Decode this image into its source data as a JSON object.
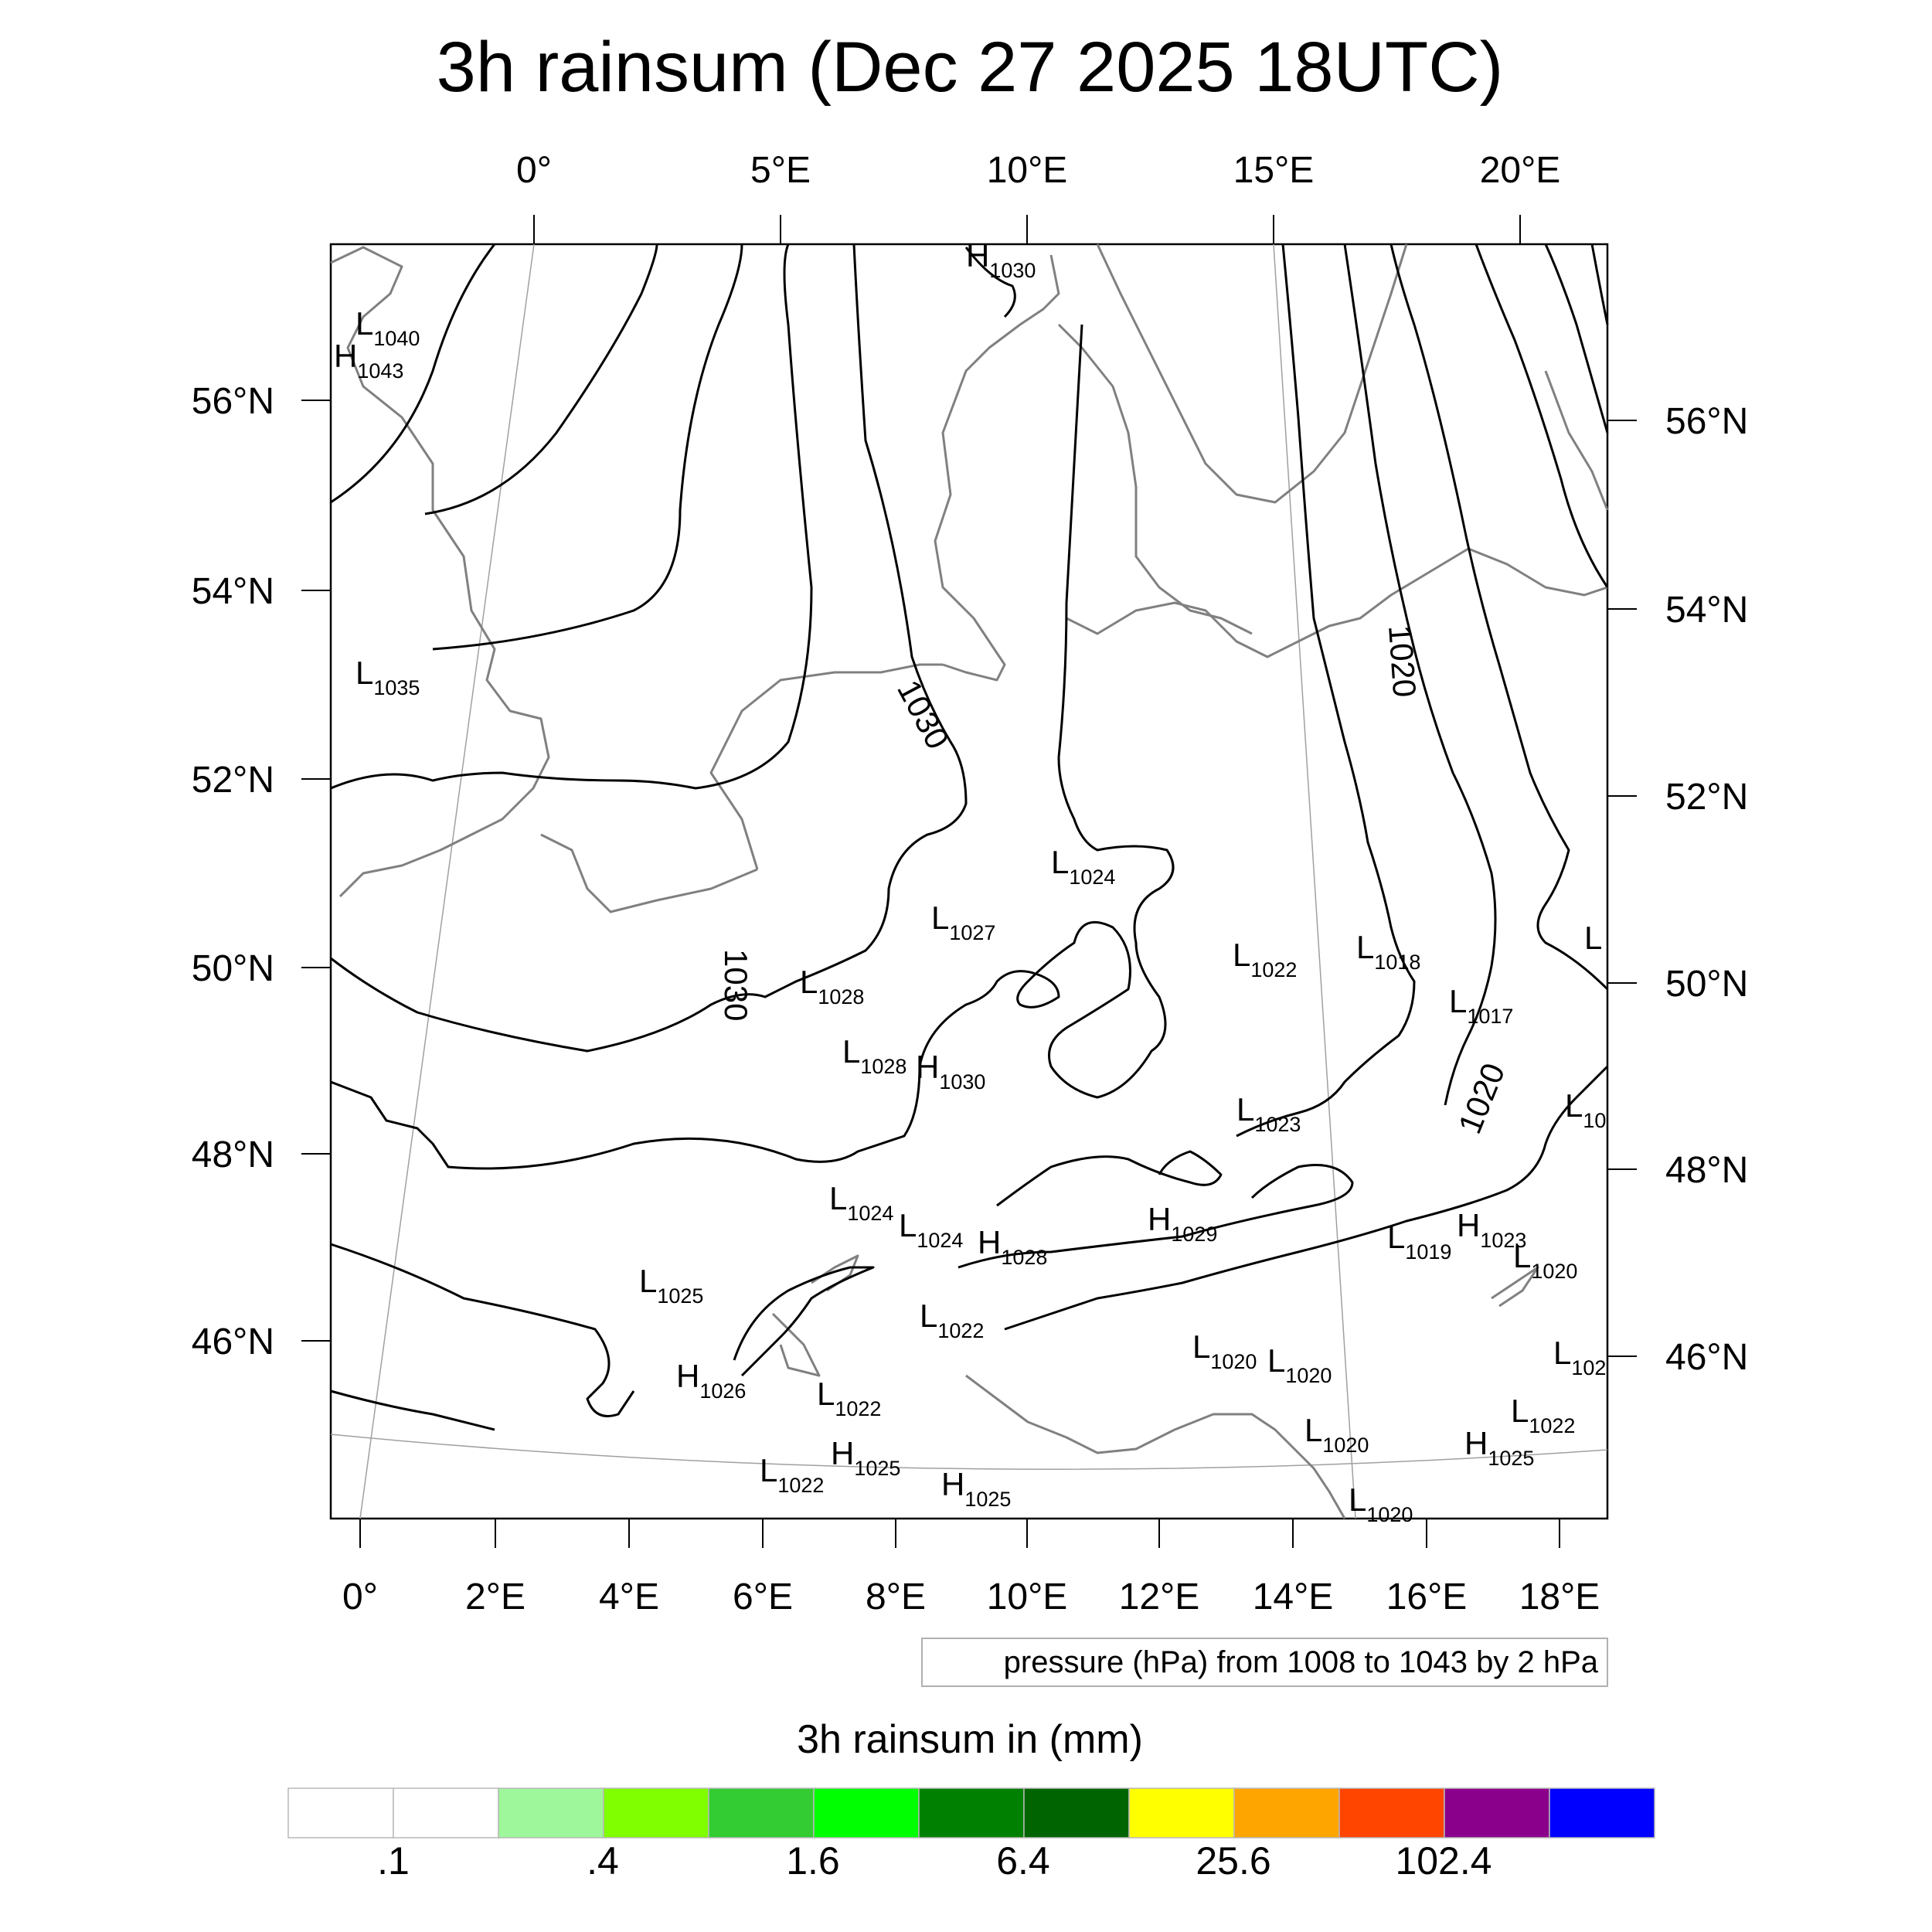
{
  "title": "3h rainsum (Dec 27 2025 18UTC)",
  "map": {
    "top_ticks": [
      "0°",
      "5°E",
      "10°E",
      "15°E",
      "20°E"
    ],
    "bottom_ticks": [
      "0°",
      "2°E",
      "4°E",
      "6°E",
      "8°E",
      "10°E",
      "12°E",
      "14°E",
      "16°E",
      "18°E"
    ],
    "left_ticks": [
      "56°N",
      "54°N",
      "52°N",
      "50°N",
      "48°N",
      "46°N"
    ],
    "right_ticks": [
      "56°N",
      "54°N",
      "52°N",
      "50°N",
      "48°N",
      "46°N"
    ],
    "info_box": "pressure (hPa) from 1008 to 1043 by 2 hPa",
    "isobar_labels": [
      "1030",
      "1030",
      "1020",
      "1020"
    ],
    "centers": [
      {
        "t": "H",
        "v": "1030"
      },
      {
        "t": "L",
        "v": "1040"
      },
      {
        "t": "H",
        "v": "1043"
      },
      {
        "t": "L",
        "v": "1035"
      },
      {
        "t": "L",
        "v": "1024"
      },
      {
        "t": "L",
        "v": "1027"
      },
      {
        "t": "L",
        "v": "1028"
      },
      {
        "t": "L",
        "v": "1028"
      },
      {
        "t": "H",
        "v": "1030"
      },
      {
        "t": "L",
        "v": "1022"
      },
      {
        "t": "L",
        "v": "1018"
      },
      {
        "t": "L",
        "v": "1017"
      },
      {
        "t": "L",
        "v": "1023"
      },
      {
        "t": "L",
        "v": "10"
      },
      {
        "t": "L",
        "v": "1024"
      },
      {
        "t": "L",
        "v": "1024"
      },
      {
        "t": "H",
        "v": "1028"
      },
      {
        "t": "H",
        "v": "1029"
      },
      {
        "t": "L",
        "v": "1019"
      },
      {
        "t": "H",
        "v": "1023"
      },
      {
        "t": "L",
        "v": "1020"
      },
      {
        "t": "L",
        "v": "1025"
      },
      {
        "t": "L",
        "v": "1022"
      },
      {
        "t": "L",
        "v": "1020"
      },
      {
        "t": "L",
        "v": "1020"
      },
      {
        "t": "L",
        "v": "102"
      },
      {
        "t": "H",
        "v": "1026"
      },
      {
        "t": "L",
        "v": "1022"
      },
      {
        "t": "L",
        "v": "1020"
      },
      {
        "t": "L",
        "v": "1022"
      },
      {
        "t": "H",
        "v": "1025"
      },
      {
        "t": "L",
        "v": "1022"
      },
      {
        "t": "H",
        "v": "1025"
      },
      {
        "t": "H",
        "v": "1025"
      },
      {
        "t": "L",
        "v": "1020"
      },
      {
        "t": "L",
        "v": ""
      }
    ]
  },
  "colorbar": {
    "title": "3h rainsum in (mm)",
    "colors": [
      "#ffffff",
      "#ffffff",
      "#9ef79a",
      "#80ff00",
      "#33cc33",
      "#00ff00",
      "#008000",
      "#006400",
      "#ffff00",
      "#ffa500",
      "#ff4500",
      "#8b008b",
      "#0000ff"
    ],
    "labels": [
      ".1",
      ".4",
      "1.6",
      "6.4",
      "25.6",
      "102.4"
    ]
  }
}
